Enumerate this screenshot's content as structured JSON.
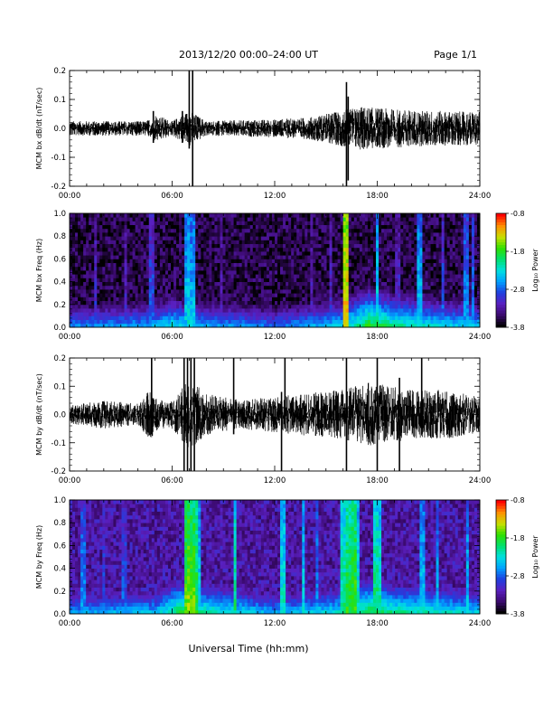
{
  "header": {
    "title": "2013/12/20  00:00–24:00 UT",
    "page_label": "Page 1/1"
  },
  "footer": {
    "xlabel": "Universal Time (hh:mm)"
  },
  "colors": {
    "trace": "#000000",
    "background": "#ffffff",
    "colormap": [
      "#000000",
      "#3b0a6e",
      "#5a1fbf",
      "#1f3fe0",
      "#00a0ff",
      "#00e0e0",
      "#00e070",
      "#30e000",
      "#c8e000",
      "#ff9000",
      "#ff0000"
    ]
  },
  "chart_data": [
    {
      "type": "line",
      "ylabel": "MCM bx dB/dt (nT/sec)",
      "xlim": [
        0,
        24
      ],
      "ylim": [
        -0.2,
        0.2
      ],
      "yticks": [
        "0.2",
        "0.1",
        "0.0",
        "-0.1",
        "-0.2"
      ],
      "xticks": [
        "00:00",
        "06:00",
        "12:00",
        "18:00",
        "24:00"
      ],
      "baseline_amplitude": [
        [
          0,
          0.02
        ],
        [
          4.5,
          0.02
        ],
        [
          5,
          0.04
        ],
        [
          6,
          0.02
        ],
        [
          7,
          0.05
        ],
        [
          8,
          0.02
        ],
        [
          12,
          0.025
        ],
        [
          14,
          0.03
        ],
        [
          15.5,
          0.045
        ],
        [
          17,
          0.06
        ],
        [
          20,
          0.05
        ],
        [
          24,
          0.045
        ]
      ],
      "spikes": [
        [
          6.6,
          0.06,
          -0.05
        ],
        [
          7.0,
          0.21,
          -0.07
        ],
        [
          7.2,
          0.22,
          -0.21
        ],
        [
          16.2,
          0.16,
          -0.21
        ],
        [
          16.3,
          0.11,
          -0.18
        ],
        [
          4.9,
          0.06,
          -0.05
        ]
      ]
    },
    {
      "type": "heatmap",
      "ylabel": "MCM bx Freq (Hz)",
      "xlim": [
        0,
        24
      ],
      "ylim": [
        0,
        1
      ],
      "yticks": [
        "1.0",
        "0.8",
        "0.6",
        "0.4",
        "0.2",
        "0.0"
      ],
      "xticks": [
        "00:00",
        "06:00",
        "12:00",
        "18:00",
        "24:00"
      ],
      "colorbar": {
        "label": "Log₁₀ Power",
        "ticks": [
          "-0.8",
          "-1.8",
          "-2.8",
          "-3.8"
        ],
        "range": [
          -3.8,
          -0.8
        ]
      },
      "background_level": -3.6,
      "low_freq_band": [
        [
          0,
          -2.6
        ],
        [
          5,
          -2.5
        ],
        [
          6,
          -2.2
        ],
        [
          7,
          -2.4
        ],
        [
          12,
          -2.7
        ],
        [
          16,
          -2.3
        ],
        [
          17.5,
          -1.7
        ],
        [
          19,
          -2.0
        ],
        [
          22,
          -2.3
        ],
        [
          24,
          -2.4
        ]
      ],
      "bright_columns": [
        [
          1.5,
          -3.0
        ],
        [
          3.3,
          -3.1
        ],
        [
          4.8,
          -2.8
        ],
        [
          6.85,
          -2.4
        ],
        [
          7.0,
          -2.3
        ],
        [
          7.2,
          -2.4
        ],
        [
          8.9,
          -3.1
        ],
        [
          14.2,
          -3.1
        ],
        [
          15.3,
          -3.0
        ],
        [
          16.2,
          -1.2
        ],
        [
          18.0,
          -2.3
        ],
        [
          19.2,
          -3.0
        ],
        [
          20.5,
          -2.4
        ],
        [
          21.8,
          -2.8
        ],
        [
          23.2,
          -2.6
        ],
        [
          23.6,
          -2.7
        ]
      ]
    },
    {
      "type": "line",
      "ylabel": "MCM by dB/dt (nT/sec)",
      "xlim": [
        0,
        24
      ],
      "ylim": [
        -0.2,
        0.2
      ],
      "yticks": [
        "0.2",
        "0.1",
        "0.0",
        "-0.1",
        "-0.2"
      ],
      "xticks": [
        "00:00",
        "06:00",
        "12:00",
        "18:00",
        "24:00"
      ],
      "baseline_amplitude": [
        [
          0,
          0.025
        ],
        [
          2,
          0.04
        ],
        [
          4,
          0.03
        ],
        [
          4.7,
          0.07
        ],
        [
          5.2,
          0.04
        ],
        [
          6,
          0.04
        ],
        [
          7,
          0.1
        ],
        [
          8,
          0.06
        ],
        [
          10,
          0.04
        ],
        [
          12,
          0.05
        ],
        [
          14,
          0.06
        ],
        [
          16,
          0.07
        ],
        [
          17.5,
          0.09
        ],
        [
          20,
          0.07
        ],
        [
          22,
          0.07
        ],
        [
          24,
          0.05
        ]
      ],
      "spikes": [
        [
          4.8,
          0.2,
          -0.07
        ],
        [
          6.7,
          0.21,
          -0.21
        ],
        [
          6.9,
          0.21,
          -0.21
        ],
        [
          7.1,
          0.21,
          -0.21
        ],
        [
          7.3,
          0.21,
          -0.21
        ],
        [
          9.6,
          0.2,
          -0.07
        ],
        [
          12.4,
          0.08,
          -0.21
        ],
        [
          12.6,
          0.2,
          -0.05
        ],
        [
          16.2,
          0.2,
          -0.21
        ],
        [
          18.0,
          0.2,
          -0.21
        ],
        [
          19.3,
          0.13,
          -0.21
        ],
        [
          20.6,
          0.2,
          -0.05
        ]
      ]
    },
    {
      "type": "heatmap",
      "ylabel": "MCM by Freq (Hz)",
      "xlim": [
        0,
        24
      ],
      "ylim": [
        0,
        1
      ],
      "yticks": [
        "1.0",
        "0.8",
        "0.6",
        "0.4",
        "0.2",
        "0.0"
      ],
      "xticks": [
        "00:00",
        "06:00",
        "12:00",
        "18:00",
        "24:00"
      ],
      "colorbar": {
        "label": "Log₁₀ Power",
        "ticks": [
          "-0.8",
          "-1.8",
          "-2.8",
          "-3.8"
        ],
        "range": [
          -3.8,
          -0.8
        ]
      },
      "background_level": -3.3,
      "low_freq_band": [
        [
          0,
          -2.5
        ],
        [
          5,
          -2.4
        ],
        [
          6.5,
          -1.8
        ],
        [
          7.5,
          -2.0
        ],
        [
          12,
          -2.5
        ],
        [
          16,
          -2.2
        ],
        [
          17.5,
          -1.8
        ],
        [
          19,
          -2.0
        ],
        [
          24,
          -2.3
        ]
      ],
      "bright_columns": [
        [
          0.8,
          -2.6
        ],
        [
          2.0,
          -2.8
        ],
        [
          3.2,
          -2.8
        ],
        [
          6.8,
          -1.6
        ],
        [
          7.0,
          -1.5
        ],
        [
          7.2,
          -1.6
        ],
        [
          7.4,
          -1.8
        ],
        [
          7.6,
          -2.3
        ],
        [
          9.7,
          -2.0
        ],
        [
          12.5,
          -2.2
        ],
        [
          13.7,
          -2.3
        ],
        [
          14.5,
          -2.6
        ],
        [
          16.0,
          -2.0
        ],
        [
          16.3,
          -1.8
        ],
        [
          16.6,
          -1.7
        ],
        [
          16.9,
          -2.2
        ],
        [
          17.9,
          -2.0
        ],
        [
          18.1,
          -2.1
        ],
        [
          20.6,
          -2.4
        ],
        [
          21.5,
          -2.5
        ],
        [
          23.3,
          -2.4
        ]
      ]
    }
  ]
}
